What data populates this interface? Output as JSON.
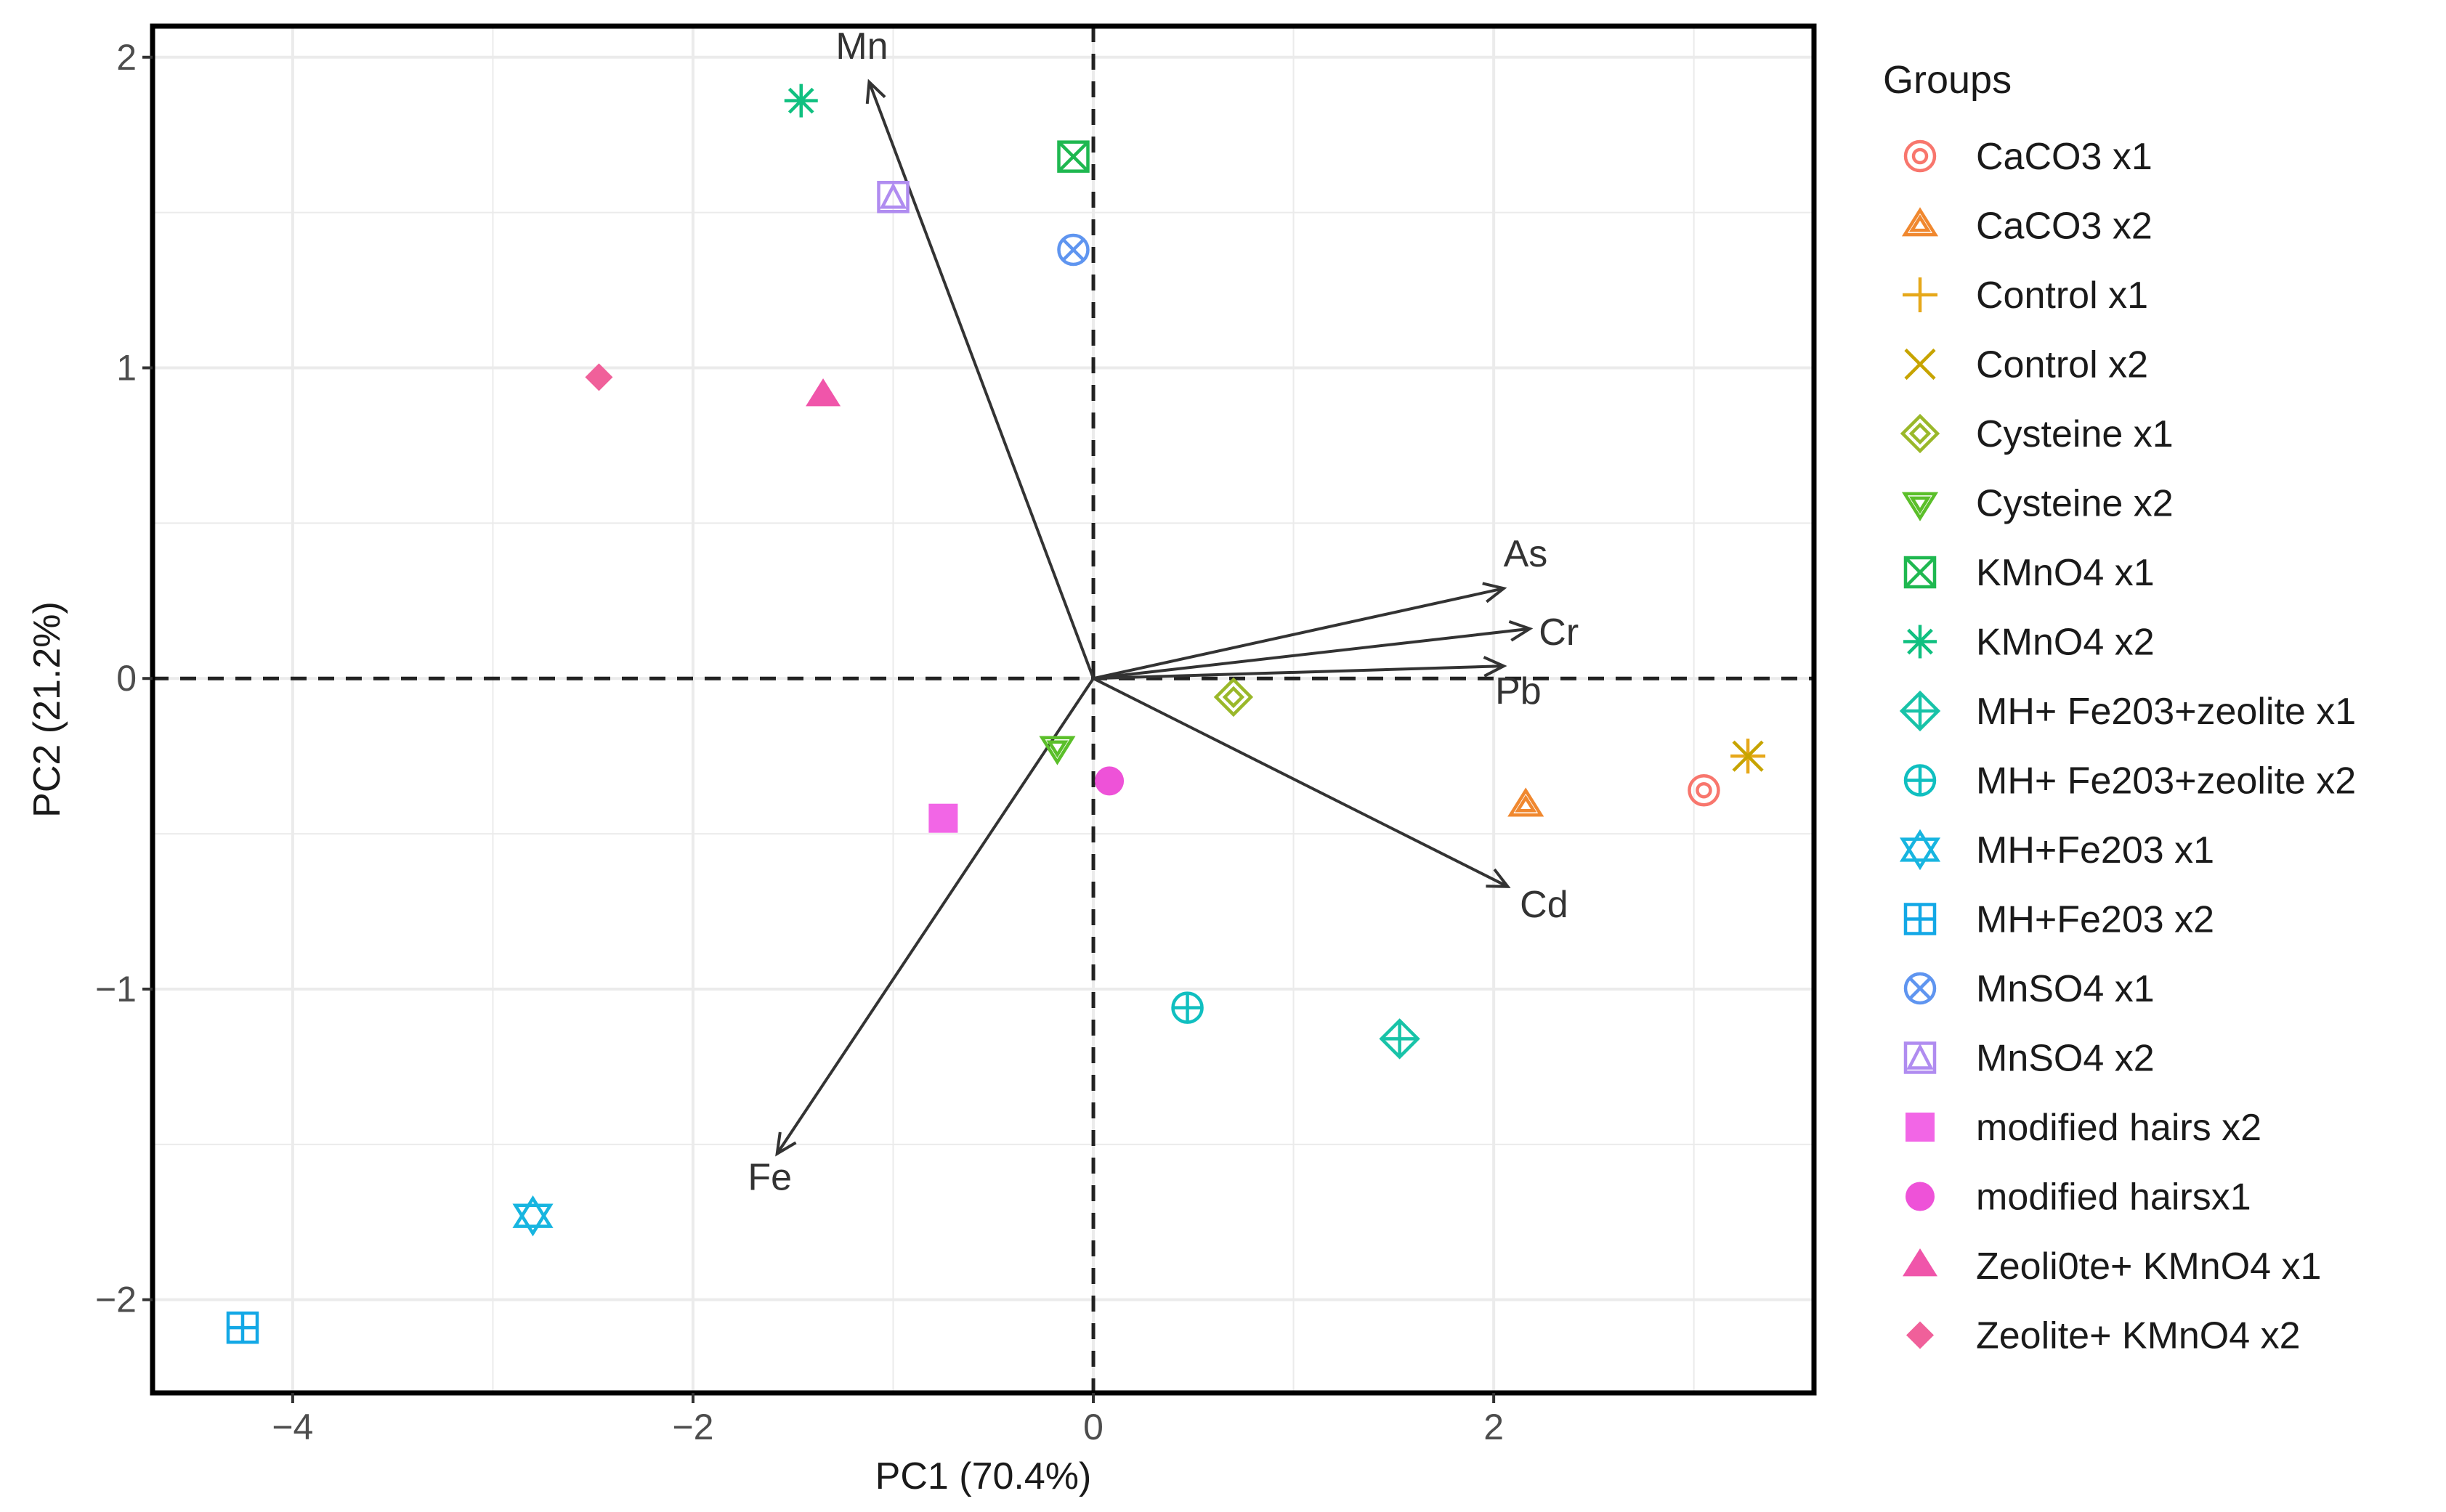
{
  "chart_data": {
    "type": "scatter",
    "title": "",
    "xlabel": "PC1 (70.4%)",
    "ylabel": "PC2 (21.2%)",
    "xlim": [
      -4.7,
      3.6
    ],
    "ylim": [
      -2.3,
      2.1
    ],
    "xticks": [
      -4,
      -2,
      0,
      2
    ],
    "yticks": [
      -2,
      -1,
      0,
      1,
      2
    ],
    "xtick_labels": [
      "−4",
      "−2",
      "0",
      "2"
    ],
    "ytick_labels": [
      "−2",
      "−1",
      "0",
      "1",
      "2"
    ],
    "grid": true,
    "legend": {
      "title": "Groups",
      "position": "right"
    },
    "series": [
      {
        "name": "CaCO3 x1",
        "x": 3.05,
        "y": -0.36,
        "color": "#F8766D",
        "shape": "circle-dot"
      },
      {
        "name": "CaCO3 x2",
        "x": 2.16,
        "y": -0.41,
        "color": "#F0882F",
        "shape": "triangle-open"
      },
      {
        "name": "Control x1",
        "x": 3.27,
        "y": -0.25,
        "color": "#E6A81A",
        "shape": "plus"
      },
      {
        "name": "Control x2",
        "x": 3.27,
        "y": -0.25,
        "color": "#C7A400",
        "shape": "cross"
      },
      {
        "name": "Cysteine x1",
        "x": 0.7,
        "y": -0.06,
        "color": "#9AB82A",
        "shape": "diamond-open"
      },
      {
        "name": "Cysteine x2",
        "x": -0.18,
        "y": -0.22,
        "color": "#5BBF2A",
        "shape": "triangle-down-open"
      },
      {
        "name": "KMnO4 x1",
        "x": -0.1,
        "y": 1.68,
        "color": "#1FB850",
        "shape": "square-x"
      },
      {
        "name": "KMnO4 x2",
        "x": -1.46,
        "y": 1.86,
        "color": "#10C080",
        "shape": "asterisk"
      },
      {
        "name": "MH+ Fe203+zeolite x1",
        "x": 1.53,
        "y": -1.16,
        "color": "#18C3A8",
        "shape": "diamond-plus"
      },
      {
        "name": "MH+ Fe203+zeolite x2",
        "x": 0.47,
        "y": -1.06,
        "color": "#10BFC0",
        "shape": "circle-plus"
      },
      {
        "name": "MH+Fe203 x1",
        "x": -2.8,
        "y": -1.73,
        "color": "#17B5E0",
        "shape": "star-of-david"
      },
      {
        "name": "MH+Fe203 x2",
        "x": -4.25,
        "y": -2.09,
        "color": "#13A8E6",
        "shape": "square-plus"
      },
      {
        "name": "MnSO4 x1",
        "x": -0.1,
        "y": 1.38,
        "color": "#5F95F0",
        "shape": "circle-x"
      },
      {
        "name": "MnSO4 x2",
        "x": -1.0,
        "y": 1.55,
        "color": "#B08CF0",
        "shape": "square-triangle"
      },
      {
        "name": "modified hairs x2",
        "x": -0.75,
        "y": -0.45,
        "color": "#F266E6",
        "shape": "square"
      },
      {
        "name": "modified hairsx1",
        "x": 0.08,
        "y": -0.33,
        "color": "#EE52D8",
        "shape": "circle"
      },
      {
        "name": "Zeoli0te+ KMnO4 x1",
        "x": -1.35,
        "y": 0.91,
        "color": "#F055AA",
        "shape": "triangle"
      },
      {
        "name": "Zeolite+ KMnO4 x2",
        "x": -2.47,
        "y": 0.97,
        "color": "#F0609A",
        "shape": "diamond"
      }
    ],
    "loadings": [
      {
        "name": "Mn",
        "x": -1.12,
        "y": 1.92
      },
      {
        "name": "As",
        "x": 2.05,
        "y": 0.29
      },
      {
        "name": "Cr",
        "x": 2.18,
        "y": 0.16
      },
      {
        "name": "Pb",
        "x": 2.05,
        "y": 0.04
      },
      {
        "name": "Cd",
        "x": 2.07,
        "y": -0.67
      },
      {
        "name": "Fe",
        "x": -1.58,
        "y": -1.53
      }
    ]
  }
}
